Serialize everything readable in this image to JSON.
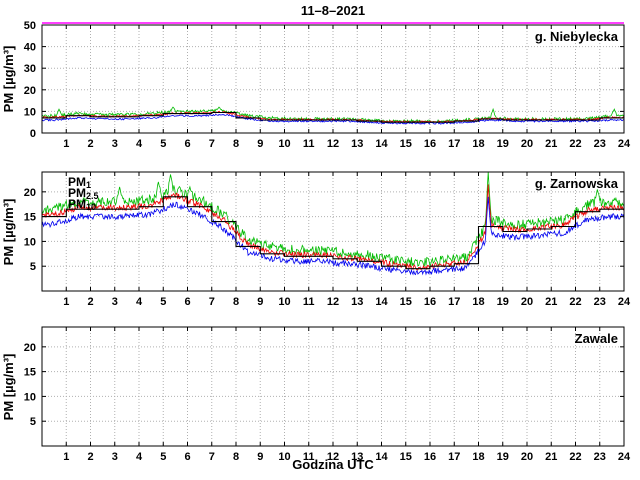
{
  "title": "11–8–2021",
  "xlabel": "Godzina UTC",
  "ylabel": "PM [µg/m³]",
  "colors": {
    "pm1": "#0000ee",
    "pm25": "#ee0000",
    "pm10": "#00bb00",
    "mean": "#000000",
    "threshold": "#ff00ff",
    "grid": "#b0b0b0"
  },
  "chart_data": [
    {
      "type": "line",
      "station": "g. Niebylecka",
      "xlim": [
        0,
        24
      ],
      "xticks": [
        1,
        2,
        3,
        4,
        5,
        6,
        7,
        8,
        9,
        10,
        11,
        12,
        13,
        14,
        15,
        16,
        17,
        18,
        19,
        20,
        21,
        22,
        23,
        24
      ],
      "ylim": [
        0,
        50
      ],
      "yticks": [
        0,
        10,
        20,
        30,
        40,
        50
      ],
      "threshold": 50,
      "series": [
        {
          "name": "PM10",
          "color_key": "pm10",
          "noise": 0.7,
          "hourly": [
            8,
            9,
            8.5,
            8.5,
            9,
            10,
            10,
            10.5,
            8,
            7,
            6.5,
            6.5,
            6.5,
            6,
            5.5,
            5.5,
            5.5,
            6,
            7,
            6.5,
            6.5,
            6.5,
            6.5,
            8
          ],
          "spikes": [
            [
              0.7,
              11
            ],
            [
              5.4,
              12
            ],
            [
              7.3,
              12
            ],
            [
              18.6,
              11
            ],
            [
              23.6,
              11
            ]
          ]
        },
        {
          "name": "PM2.5",
          "color_key": "pm25",
          "noise": 0.4,
          "hourly": [
            7.2,
            8.2,
            7.7,
            7.7,
            8.2,
            9.2,
            9.2,
            9.7,
            7.2,
            6.2,
            6.2,
            6.2,
            6.2,
            5.7,
            5.2,
            5.2,
            5.2,
            5.7,
            6.7,
            6.2,
            6.2,
            6.2,
            6.2,
            7.2
          ]
        },
        {
          "name": "PM1",
          "color_key": "pm1",
          "noise": 0.4,
          "hourly": [
            6,
            7,
            6.5,
            6.5,
            7,
            8,
            8,
            8.5,
            6.5,
            5.5,
            5.5,
            5.5,
            5.5,
            5,
            4.5,
            4.5,
            4.5,
            5,
            6,
            5.5,
            5.5,
            5.5,
            5.5,
            6
          ]
        },
        {
          "name": "hourly mean",
          "color_key": "mean",
          "step": true,
          "hourly": [
            7,
            8,
            7.5,
            7.5,
            8,
            9,
            9,
            9.5,
            7,
            6,
            6,
            6,
            6,
            5.5,
            5,
            5,
            5,
            5.5,
            6.5,
            6,
            6,
            6,
            6,
            7
          ]
        }
      ]
    },
    {
      "type": "line",
      "station": "g. Zarnowska",
      "xlim": [
        0,
        24
      ],
      "xticks": [
        1,
        2,
        3,
        4,
        5,
        6,
        7,
        8,
        9,
        10,
        11,
        12,
        13,
        14,
        15,
        16,
        17,
        18,
        19,
        20,
        21,
        22,
        23,
        24
      ],
      "ylim": [
        0,
        24
      ],
      "yticks": [
        5,
        10,
        15,
        20
      ],
      "legend": [
        {
          "base": "PM",
          "sub": "1",
          "color_key": "pm1"
        },
        {
          "base": "PM",
          "sub": "2.5",
          "color_key": "pm25"
        },
        {
          "base": "PM",
          "sub": "10",
          "color_key": "mean"
        }
      ],
      "series": [
        {
          "name": "PM10",
          "color_key": "pm10",
          "noise": 1.0,
          "hourly": [
            16.5,
            18,
            18,
            18,
            18.5,
            20.5,
            18.5,
            15.5,
            10.2,
            8.8,
            8.2,
            8.2,
            7.8,
            7.2,
            6.2,
            5.8,
            6.2,
            6.8,
            14.5,
            13.3,
            13.8,
            14.3,
            17.5,
            18
          ],
          "spikes": [
            [
              3.2,
              21
            ],
            [
              4.8,
              22
            ],
            [
              5.3,
              23.5
            ],
            [
              6.1,
              21
            ],
            [
              18.4,
              24
            ],
            [
              22.9,
              20.5
            ]
          ]
        },
        {
          "name": "PM2.5",
          "color_key": "pm25",
          "noise": 0.6,
          "hourly": [
            15.3,
            16.8,
            16.8,
            16.8,
            17.3,
            19.3,
            17.3,
            14.3,
            9.3,
            7.8,
            7.3,
            7.3,
            6.8,
            6.3,
            5.3,
            4.8,
            5.3,
            5.8,
            13.3,
            12.3,
            12.8,
            13.3,
            16.3,
            16.8
          ],
          "spikes": [
            [
              18.4,
              21.5
            ]
          ]
        },
        {
          "name": "PM1",
          "color_key": "pm1",
          "noise": 0.6,
          "hourly": [
            13.5,
            15,
            15,
            15,
            15.5,
            17.5,
            15.5,
            12.5,
            7.8,
            6.5,
            6,
            6,
            5.5,
            5,
            4.2,
            3.8,
            4.2,
            4.7,
            11.5,
            10.8,
            11.2,
            11.7,
            14.5,
            15
          ],
          "spikes": [
            [
              18.4,
              19
            ]
          ]
        },
        {
          "name": "hourly mean",
          "color_key": "mean",
          "step": true,
          "hourly": [
            15,
            16.5,
            16.5,
            16.5,
            17,
            19,
            17,
            14,
            9,
            7.5,
            7,
            7,
            6.5,
            6,
            5,
            4.5,
            5,
            5.5,
            13,
            12,
            12.5,
            13,
            16,
            16.5
          ]
        }
      ]
    },
    {
      "type": "line",
      "station": "Zawale",
      "xlim": [
        0,
        24
      ],
      "xticks": [
        1,
        2,
        3,
        4,
        5,
        6,
        7,
        8,
        9,
        10,
        11,
        12,
        13,
        14,
        15,
        16,
        17,
        18,
        19,
        20,
        21,
        22,
        23,
        24
      ],
      "ylim": [
        0,
        24
      ],
      "yticks": [
        5,
        10,
        15,
        20
      ],
      "series": []
    }
  ]
}
